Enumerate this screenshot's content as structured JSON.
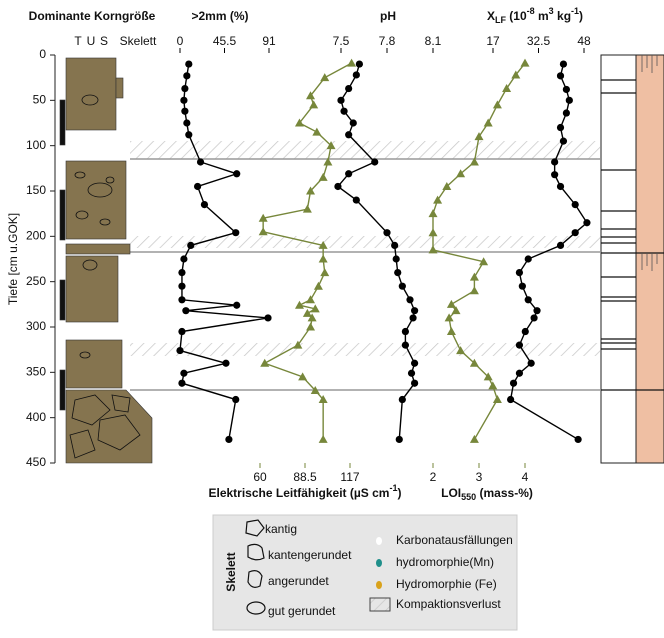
{
  "chart_data": {
    "type": "depth-profile",
    "header": "Dominante Korngröße",
    "column_labels": [
      "T",
      "U",
      "S",
      "Skelett"
    ],
    "y_label": "Tiefe [cm u.GOK]",
    "ylim": [
      0,
      450
    ],
    "yticks": [
      0,
      50,
      100,
      150,
      200,
      250,
      300,
      350,
      400,
      450
    ],
    "profiles": [
      {
        "label": [
          ">2mm (%)"
        ],
        "axis": "top",
        "color": "#000000",
        "marker": "circle",
        "xlim": [
          0,
          91
        ],
        "xticks": [
          0,
          45.5,
          91
        ],
        "depth": [
          10,
          23,
          37,
          50,
          62,
          75,
          88,
          118,
          131,
          145,
          165,
          196,
          210,
          225,
          240,
          255,
          270,
          276,
          282,
          290,
          305,
          326,
          340,
          351,
          362,
          380,
          424
        ],
        "values": [
          9,
          7,
          5,
          4,
          5,
          7,
          9,
          21,
          58,
          18,
          25,
          57,
          11,
          4,
          2,
          2,
          2,
          58,
          6,
          90,
          2,
          0,
          47,
          4,
          2,
          57,
          50
        ]
      },
      {
        "label": [
          "Elektrische Leitfähigkeit (µS cm",
          "-1",
          ")"
        ],
        "axis": "bottom",
        "color": "#77873b",
        "marker": "triangle",
        "xlim": [
          60,
          117
        ],
        "xticks": [
          60,
          88.5,
          117
        ],
        "depth": [
          9,
          25,
          45,
          55,
          75,
          85,
          100,
          118,
          135,
          150,
          170,
          180,
          195,
          210,
          225,
          240,
          255,
          270,
          276,
          280,
          285,
          290,
          300,
          320,
          340,
          355,
          370,
          380,
          424
        ],
        "values": [
          118,
          101,
          92,
          94,
          85,
          96,
          105,
          103,
          100,
          92,
          90,
          62,
          62,
          100,
          100,
          101,
          97,
          92,
          85,
          95,
          90,
          93,
          92,
          84,
          63,
          87,
          95,
          100,
          100
        ]
      },
      {
        "label": [
          "pH"
        ],
        "axis": "top",
        "color": "#000000",
        "marker": "circle",
        "xlim": [
          7.5,
          8.1
        ],
        "xticks": [
          7.5,
          7.8,
          8.1
        ],
        "depth": [
          10,
          22,
          37,
          50,
          62,
          75,
          88,
          118,
          131,
          145,
          160,
          196,
          210,
          225,
          240,
          255,
          270,
          282,
          290,
          305,
          320,
          340,
          351,
          362,
          380,
          424
        ],
        "values": [
          7.62,
          7.6,
          7.55,
          7.5,
          7.52,
          7.58,
          7.55,
          7.72,
          7.55,
          7.48,
          7.6,
          7.8,
          7.85,
          7.86,
          7.87,
          7.9,
          7.95,
          7.98,
          7.97,
          7.92,
          7.92,
          7.98,
          7.96,
          7.98,
          7.9,
          7.88
        ]
      },
      {
        "label": [
          "LOI",
          "550",
          " (mass-%)"
        ],
        "axis": "bottom",
        "color": "#77873b",
        "marker": "triangle",
        "xlim": [
          2,
          4
        ],
        "xticks": [
          2,
          3,
          4
        ],
        "depth": [
          9,
          22,
          37,
          55,
          75,
          90,
          118,
          131,
          145,
          160,
          175,
          196,
          215,
          228,
          245,
          260,
          275,
          282,
          290,
          305,
          326,
          340,
          355,
          365,
          380,
          424
        ],
        "values": [
          4.0,
          3.8,
          3.6,
          3.4,
          3.2,
          3.0,
          2.9,
          2.6,
          2.3,
          2.1,
          2.0,
          2.0,
          2.0,
          3.1,
          2.9,
          2.9,
          2.4,
          2.5,
          2.35,
          2.4,
          2.6,
          2.9,
          3.2,
          3.3,
          3.4,
          2.9
        ]
      },
      {
        "label": [
          "X",
          "LF",
          " (10",
          "-8",
          " m",
          "3",
          " kg",
          "-1",
          ")"
        ],
        "axis": "top",
        "color": "#000000",
        "marker": "circle",
        "xlim": [
          17,
          48
        ],
        "xticks": [
          17,
          32.5,
          48
        ],
        "depth": [
          10,
          23,
          38,
          50,
          64,
          80,
          95,
          118,
          132,
          145,
          165,
          185,
          196,
          210,
          225,
          240,
          255,
          270,
          282,
          290,
          305,
          320,
          340,
          351,
          362,
          380,
          424
        ],
        "values": [
          41,
          40,
          42,
          43,
          42,
          40,
          41,
          38,
          38,
          40,
          45,
          49,
          45,
          40,
          29,
          26,
          27,
          29,
          32,
          31,
          28,
          26,
          30,
          26,
          24,
          23,
          46
        ]
      }
    ],
    "legend": {
      "group": "Skelett",
      "shapes": [
        "kantig",
        "kantengerundet",
        "angerundet",
        "gut gerundet"
      ],
      "symbols": [
        "Karbonatausfällungen",
        "hydromorphie(Mn)",
        "Hydromorphie (Fe)",
        "Kompaktionsverlust"
      ]
    }
  }
}
